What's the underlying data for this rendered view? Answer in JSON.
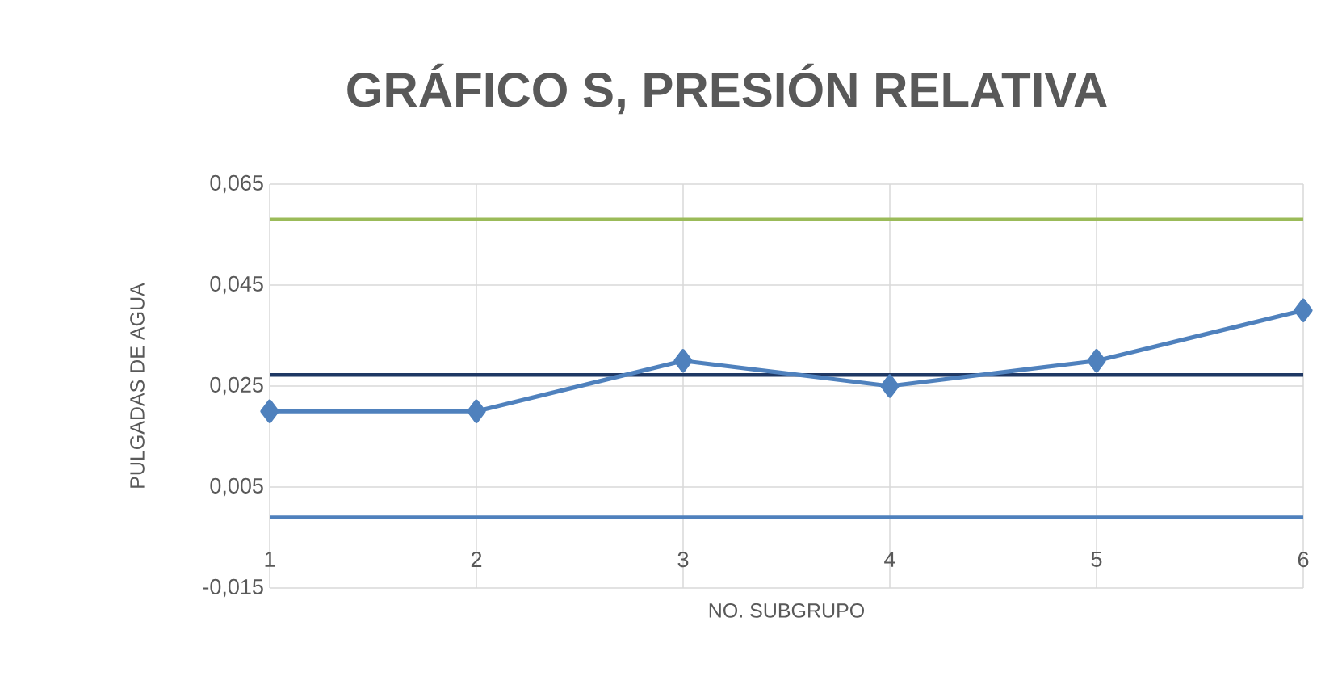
{
  "chart_data": {
    "type": "line",
    "title": "GRÁFICO S, PRESIÓN RELATIVA",
    "xlabel": "NO. SUBGRUPO",
    "ylabel": "PULGADAS DE AGUA",
    "categories": [
      "1",
      "2",
      "3",
      "4",
      "5",
      "6"
    ],
    "series": [
      {
        "color": "#4f81bd",
        "values": [
          0.02,
          0.02,
          0.03,
          0.025,
          0.03,
          0.04
        ]
      }
    ],
    "marker": "diamond",
    "line_style": "solid",
    "grid": true,
    "ylim": [
      -0.015,
      0.065
    ],
    "yticks": [
      {
        "value": -0.015,
        "label": "-0,015"
      },
      {
        "value": 0.005,
        "label": "0,005"
      },
      {
        "value": 0.025,
        "label": "0,025"
      },
      {
        "value": 0.045,
        "label": "0,045"
      },
      {
        "value": 0.065,
        "label": "0,065"
      }
    ],
    "ref_lines": [
      {
        "axis": "y",
        "value": 0.058,
        "color": "#9bbb59"
      },
      {
        "axis": "y",
        "value": 0.0272,
        "color": "#1f3864"
      },
      {
        "axis": "y",
        "value": -0.001,
        "color": "#4f81bd"
      }
    ]
  }
}
